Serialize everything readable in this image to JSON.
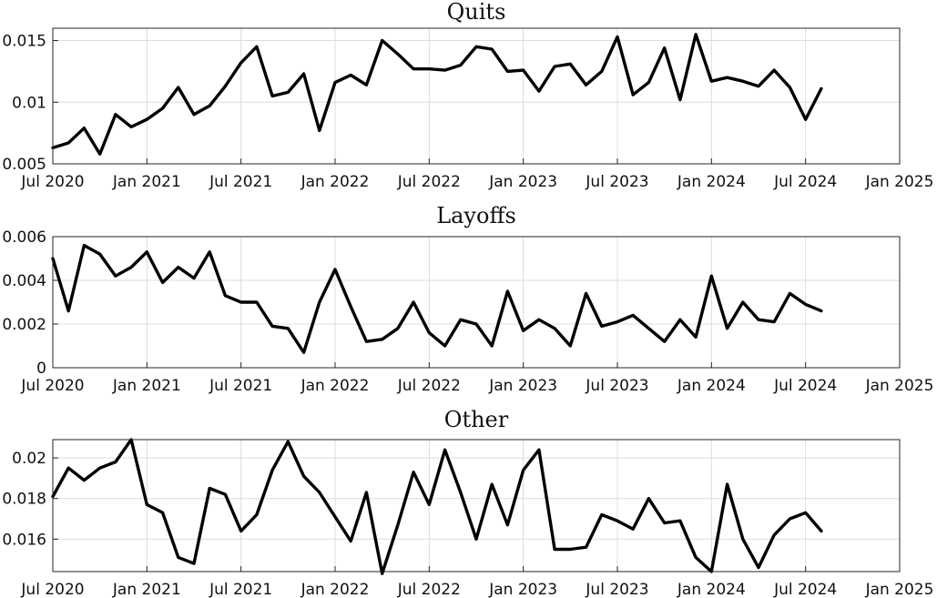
{
  "chart_data": [
    {
      "type": "line",
      "title": "Quits",
      "xlabel": "",
      "ylabel": "",
      "ylim": [
        0.005,
        0.016
      ],
      "yticks": [
        0.005,
        0.01,
        0.015
      ],
      "ytick_labels": [
        "0.005",
        "0.01",
        "0.015"
      ],
      "xlim": [
        "2020-07",
        "2025-01"
      ],
      "xtick_labels": [
        "Jul 2020",
        "Jan 2021",
        "Jul 2021",
        "Jan 2022",
        "Jul 2022",
        "Jan 2023",
        "Jul 2023",
        "Jan 2024",
        "Jul 2024",
        "Jan 2025"
      ],
      "grid": true,
      "series": [
        {
          "x": [
            "2020-07",
            "2020-08",
            "2020-09",
            "2020-10",
            "2020-11",
            "2020-12",
            "2021-01",
            "2021-02",
            "2021-03",
            "2021-04",
            "2021-05",
            "2021-06",
            "2021-07",
            "2021-08",
            "2021-09",
            "2021-10",
            "2021-11",
            "2021-12",
            "2022-01",
            "2022-02",
            "2022-03",
            "2022-04",
            "2022-05",
            "2022-06",
            "2022-07",
            "2022-08",
            "2022-09",
            "2022-10",
            "2022-11",
            "2022-12",
            "2023-01",
            "2023-02",
            "2023-03",
            "2023-04",
            "2023-05",
            "2023-06",
            "2023-07",
            "2023-08",
            "2023-09",
            "2023-10",
            "2023-11",
            "2023-12",
            "2024-01",
            "2024-02",
            "2024-03",
            "2024-04",
            "2024-05",
            "2024-06",
            "2024-07",
            "2024-08"
          ],
          "values": [
            0.0063,
            0.0067,
            0.0079,
            0.0058,
            0.009,
            0.008,
            0.0086,
            0.0095,
            0.0112,
            0.009,
            0.0097,
            0.0113,
            0.0132,
            0.0145,
            0.0105,
            0.0108,
            0.0123,
            0.0077,
            0.0116,
            0.0122,
            0.0114,
            0.015,
            0.0139,
            0.0127,
            0.0127,
            0.0126,
            0.013,
            0.0145,
            0.0143,
            0.0125,
            0.0126,
            0.0109,
            0.0129,
            0.0131,
            0.0114,
            0.0125,
            0.0153,
            0.0106,
            0.0116,
            0.0144,
            0.0102,
            0.0155,
            0.0117,
            0.012,
            0.0117,
            0.0113,
            0.0126,
            0.0112,
            0.0086,
            0.0111
          ]
        }
      ]
    },
    {
      "type": "line",
      "title": "Layoffs",
      "xlabel": "",
      "ylabel": "",
      "ylim": [
        0,
        0.006
      ],
      "yticks": [
        0,
        0.002,
        0.004,
        0.006
      ],
      "ytick_labels": [
        "0",
        "0.002",
        "0.004",
        "0.006"
      ],
      "xlim": [
        "2020-07",
        "2025-01"
      ],
      "xtick_labels": [
        "Jul 2020",
        "Jan 2021",
        "Jul 2021",
        "Jan 2022",
        "Jul 2022",
        "Jan 2023",
        "Jul 2023",
        "Jan 2024",
        "Jul 2024",
        "Jan 2025"
      ],
      "grid": true,
      "series": [
        {
          "x": [
            "2020-07",
            "2020-08",
            "2020-09",
            "2020-10",
            "2020-11",
            "2020-12",
            "2021-01",
            "2021-02",
            "2021-03",
            "2021-04",
            "2021-05",
            "2021-06",
            "2021-07",
            "2021-08",
            "2021-09",
            "2021-10",
            "2021-11",
            "2021-12",
            "2022-01",
            "2022-02",
            "2022-03",
            "2022-04",
            "2022-05",
            "2022-06",
            "2022-07",
            "2022-08",
            "2022-09",
            "2022-10",
            "2022-11",
            "2022-12",
            "2023-01",
            "2023-02",
            "2023-03",
            "2023-04",
            "2023-05",
            "2023-06",
            "2023-07",
            "2023-08",
            "2023-09",
            "2023-10",
            "2023-11",
            "2023-12",
            "2024-01",
            "2024-02",
            "2024-03",
            "2024-04",
            "2024-05",
            "2024-06",
            "2024-07",
            "2024-08"
          ],
          "values": [
            0.005,
            0.0026,
            0.0056,
            0.0052,
            0.0042,
            0.0046,
            0.0053,
            0.0039,
            0.0046,
            0.0041,
            0.0053,
            0.0033,
            0.003,
            0.003,
            0.0019,
            0.0018,
            0.0007,
            0.003,
            0.0045,
            0.0028,
            0.0012,
            0.0013,
            0.0018,
            0.003,
            0.0016,
            0.001,
            0.0022,
            0.002,
            0.001,
            0.0035,
            0.0017,
            0.0022,
            0.0018,
            0.001,
            0.0034,
            0.0019,
            0.0021,
            0.0024,
            0.0018,
            0.0012,
            0.0022,
            0.0014,
            0.0042,
            0.0018,
            0.003,
            0.0022,
            0.0021,
            0.0034,
            0.0029,
            0.0026
          ]
        }
      ]
    },
    {
      "type": "line",
      "title": "Other",
      "xlabel": "",
      "ylabel": "",
      "ylim": [
        0.0144,
        0.0209
      ],
      "yticks": [
        0.016,
        0.018,
        0.02
      ],
      "ytick_labels": [
        "0.016",
        "0.018",
        "0.02"
      ],
      "xlim": [
        "2020-07",
        "2025-01"
      ],
      "xtick_labels": [
        "Jul 2020",
        "Jan 2021",
        "Jul 2021",
        "Jan 2022",
        "Jul 2022",
        "Jan 2023",
        "Jul 2023",
        "Jan 2024",
        "Jul 2024",
        "Jan 2025"
      ],
      "grid": true,
      "series": [
        {
          "x": [
            "2020-07",
            "2020-08",
            "2020-09",
            "2020-10",
            "2020-11",
            "2020-12",
            "2021-01",
            "2021-02",
            "2021-03",
            "2021-04",
            "2021-05",
            "2021-06",
            "2021-07",
            "2021-08",
            "2021-09",
            "2021-10",
            "2021-11",
            "2021-12",
            "2022-01",
            "2022-02",
            "2022-03",
            "2022-04",
            "2022-05",
            "2022-06",
            "2022-07",
            "2022-08",
            "2022-09",
            "2022-10",
            "2022-11",
            "2022-12",
            "2023-01",
            "2023-02",
            "2023-03",
            "2023-04",
            "2023-05",
            "2023-06",
            "2023-07",
            "2023-08",
            "2023-09",
            "2023-10",
            "2023-11",
            "2023-12",
            "2024-01",
            "2024-02",
            "2024-03",
            "2024-04",
            "2024-05",
            "2024-06",
            "2024-07",
            "2024-08"
          ],
          "values": [
            0.0181,
            0.0195,
            0.0189,
            0.0195,
            0.0198,
            0.0209,
            0.0177,
            0.0173,
            0.0151,
            0.0148,
            0.0185,
            0.0182,
            0.0164,
            0.0172,
            0.0194,
            0.0208,
            0.0191,
            0.0183,
            0.0171,
            0.0159,
            0.0183,
            0.0143,
            0.0167,
            0.0193,
            0.0177,
            0.0204,
            0.0183,
            0.016,
            0.0187,
            0.0167,
            0.0194,
            0.0204,
            0.0155,
            0.0155,
            0.0156,
            0.0172,
            0.0169,
            0.0165,
            0.018,
            0.0168,
            0.0169,
            0.0151,
            0.0144,
            0.0187,
            0.016,
            0.0146,
            0.0162,
            0.017,
            0.0173,
            0.0164
          ]
        }
      ]
    }
  ]
}
